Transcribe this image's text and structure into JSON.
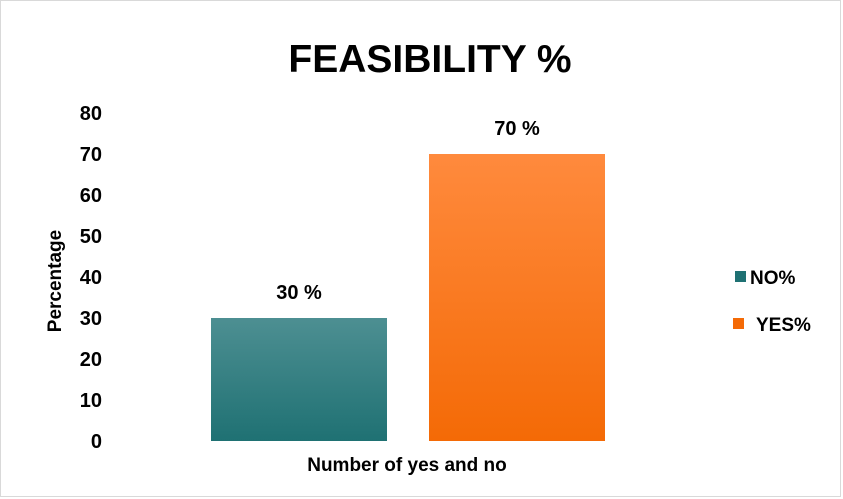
{
  "chart_data": {
    "type": "bar",
    "title": "FEASIBILITY %",
    "xlabel": "Number of yes and no",
    "ylabel": "Percentage",
    "ylim": [
      0,
      80
    ],
    "yticks": [
      0,
      10,
      20,
      30,
      40,
      50,
      60,
      70,
      80
    ],
    "grid": false,
    "legend_position": "right",
    "series": [
      {
        "name": "NO%",
        "value": 30,
        "data_label": "30 %",
        "color": "#1f7173",
        "color_light": "#4d8f92"
      },
      {
        "name": "YES%",
        "value": 70,
        "data_label": "70 %",
        "color": "#f46a06",
        "color_light": "#ff8a3d"
      }
    ]
  }
}
